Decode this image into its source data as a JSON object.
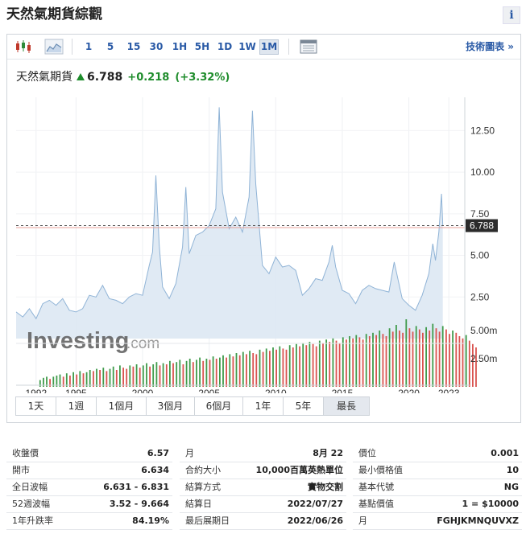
{
  "page_title": "天然氣期貨綜觀",
  "info_label": "i",
  "toolbar": {
    "ranges": [
      "1",
      "5",
      "15",
      "30",
      "1H",
      "5H",
      "1D",
      "1W",
      "1M"
    ],
    "active_range": "1M",
    "chart_link": "技術圖表 »"
  },
  "icons": [
    "candlestick-icon",
    "area-chart-icon",
    "calendar-icon"
  ],
  "quote": {
    "name": "天然氣期貨",
    "price": "6.788",
    "change": "+0.218",
    "change_pct": "(+3.32%)",
    "color_up": "#1e8c2b"
  },
  "watermark": {
    "brand": "Investing",
    "suffix": ".com"
  },
  "chart_data": {
    "type": "area",
    "x": [
      1990.5,
      1991.0,
      1991.5,
      1992.0,
      1992.5,
      1993.0,
      1993.5,
      1994.0,
      1994.5,
      1995.0,
      1995.5,
      1996.0,
      1996.5,
      1997.0,
      1997.5,
      1998.0,
      1998.5,
      1999.0,
      1999.5,
      2000.0,
      2000.5,
      2000.75,
      2001.0,
      2001.25,
      2001.5,
      2002.0,
      2002.5,
      2003.0,
      2003.25,
      2003.5,
      2004.0,
      2004.5,
      2005.0,
      2005.5,
      2005.75,
      2006.0,
      2006.5,
      2007.0,
      2007.5,
      2008.0,
      2008.25,
      2008.5,
      2009.0,
      2009.5,
      2010.0,
      2010.5,
      2011.0,
      2011.5,
      2012.0,
      2012.5,
      2013.0,
      2013.5,
      2014.0,
      2014.25,
      2014.5,
      2015.0,
      2015.5,
      2016.0,
      2016.5,
      2017.0,
      2017.5,
      2018.0,
      2018.5,
      2018.9,
      2019.5,
      2020.0,
      2020.5,
      2021.0,
      2021.5,
      2021.8,
      2022.0,
      2022.25,
      2022.45,
      2022.55
    ],
    "y": [
      1.6,
      1.3,
      1.8,
      1.2,
      2.1,
      2.3,
      2.0,
      2.4,
      1.7,
      1.6,
      1.8,
      2.6,
      2.5,
      3.2,
      2.4,
      2.3,
      2.1,
      2.5,
      2.7,
      2.6,
      4.4,
      5.2,
      9.8,
      5.6,
      3.1,
      2.4,
      3.3,
      5.5,
      9.1,
      5.1,
      6.2,
      6.4,
      6.8,
      7.8,
      13.9,
      8.8,
      6.6,
      7.3,
      6.4,
      8.5,
      13.7,
      9.3,
      4.4,
      3.9,
      4.9,
      4.3,
      4.4,
      4.1,
      2.6,
      3.0,
      3.6,
      3.5,
      4.6,
      5.6,
      4.3,
      2.9,
      2.7,
      2.1,
      2.9,
      3.2,
      3.0,
      2.9,
      2.8,
      4.6,
      2.4,
      2.0,
      1.7,
      2.6,
      3.9,
      5.7,
      4.7,
      6.4,
      8.7,
      6.788
    ],
    "x_ticks": [
      "1992",
      "1995",
      "2000",
      "2005",
      "2010",
      "2015",
      "2020",
      "2023"
    ],
    "x_tick_years": [
      1992,
      1995,
      2000,
      2005,
      2010,
      2015,
      2020,
      2023
    ],
    "y_ticks": [
      "12.50",
      "10.00",
      "7.50",
      "5.00",
      "2.50"
    ],
    "y_tick_values": [
      12.5,
      10.0,
      7.5,
      5.0,
      2.5
    ],
    "ylim": [
      0,
      14.5
    ],
    "xlim": [
      1990.5,
      2024.2
    ],
    "last_value_label": "6.788",
    "last_value": 6.788,
    "ref_line": 6.67,
    "volume_ticks": [
      "5.00m",
      "2.50m"
    ],
    "volume_tick_values": [
      5.0,
      2.5
    ],
    "volume_ylim": [
      0,
      7.0
    ],
    "volume": {
      "start_year": 1992.3,
      "step": 0.25,
      "values": [
        0.6,
        0.8,
        0.9,
        0.7,
        0.9,
        1.0,
        1.1,
        0.9,
        1.2,
        1.0,
        1.3,
        1.1,
        1.4,
        1.2,
        1.3,
        1.5,
        1.4,
        1.6,
        1.5,
        1.7,
        1.4,
        1.6,
        1.8,
        1.5,
        1.9,
        1.7,
        1.6,
        1.9,
        1.8,
        2.0,
        1.7,
        1.9,
        2.1,
        1.8,
        2.0,
        2.2,
        1.9,
        2.1,
        2.0,
        2.3,
        2.1,
        2.2,
        2.4,
        2.0,
        2.3,
        2.5,
        2.2,
        2.4,
        2.6,
        2.3,
        2.5,
        2.4,
        2.7,
        2.5,
        2.6,
        2.8,
        2.6,
        2.9,
        2.7,
        3.0,
        2.8,
        3.1,
        2.9,
        3.2,
        3.0,
        2.9,
        3.3,
        3.1,
        3.4,
        3.2,
        3.5,
        3.3,
        3.6,
        3.4,
        3.3,
        3.7,
        3.5,
        3.8,
        3.6,
        3.9,
        3.7,
        4.0,
        3.8,
        3.6,
        4.1,
        3.9,
        4.2,
        4.0,
        4.3,
        4.1,
        3.9,
        4.4,
        4.2,
        4.5,
        4.3,
        4.6,
        4.4,
        4.2,
        4.7,
        4.5,
        4.8,
        4.6,
        5.0,
        4.7,
        4.5,
        5.2,
        4.9,
        5.5,
        5.0,
        4.8,
        6.0,
        5.2,
        4.9,
        5.4,
        5.1,
        4.8,
        5.3,
        5.0,
        5.6,
        5.2,
        4.9,
        5.4,
        5.1,
        4.7,
        5.0,
        4.8,
        4.5,
        4.3,
        4.6,
        4.1,
        3.8,
        3.5
      ]
    },
    "series_color": "#8fb3d6",
    "up_color": "#3f9b4b",
    "down_color": "#d9534f"
  },
  "periods": {
    "tabs": [
      "1天",
      "1週",
      "1個月",
      "3個月",
      "6個月",
      "1年",
      "5年",
      "最長"
    ],
    "active": "最長"
  },
  "stats": [
    [
      {
        "k": "收盤價",
        "v": "6.57"
      },
      {
        "k": "開市",
        "v": "6.634"
      },
      {
        "k": "全日波幅",
        "v": "6.631 - 6.831"
      },
      {
        "k": "52週波幅",
        "v": "3.52 - 9.664"
      },
      {
        "k": "1年升跌率",
        "v": "84.19%"
      }
    ],
    [
      {
        "k": "月",
        "v": "8月 22"
      },
      {
        "k": "合約大小",
        "v": "10,000百萬英熱單位"
      },
      {
        "k": "結算方式",
        "v": "實物交割"
      },
      {
        "k": "結算日",
        "v": "2022/07/27"
      },
      {
        "k": "最后展期日",
        "v": "2022/06/26"
      }
    ],
    [
      {
        "k": "價位",
        "v": "0.001"
      },
      {
        "k": "最小價格值",
        "v": "10"
      },
      {
        "k": "基本代號",
        "v": "NG"
      },
      {
        "k": "基點價值",
        "v": "1 = $10000"
      },
      {
        "k": "月",
        "v": "FGHJKMNQUVXZ"
      }
    ]
  ]
}
